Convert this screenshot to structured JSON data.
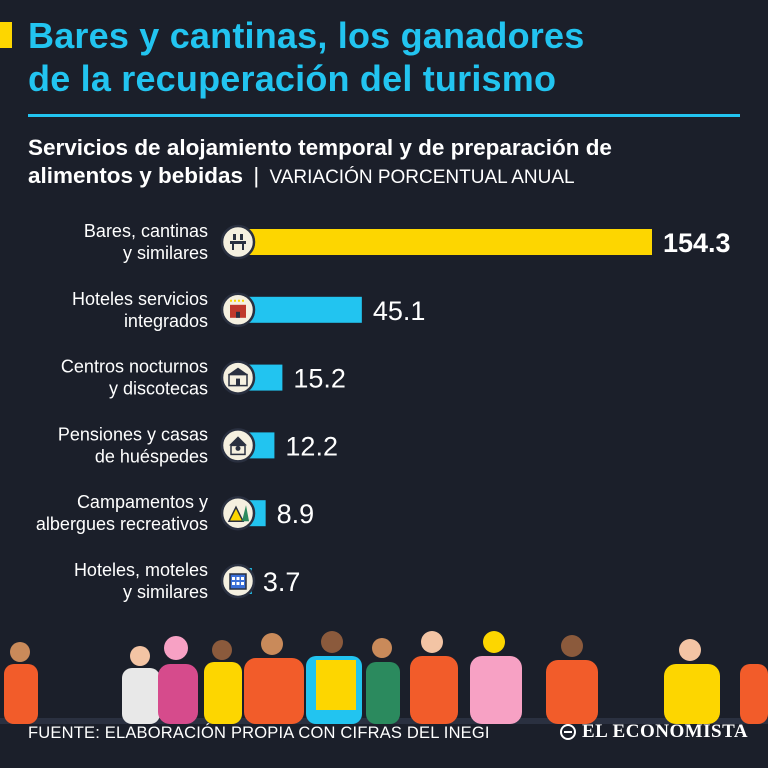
{
  "header": {
    "title_line1": "Bares y cantinas, los ganadores",
    "title_line2": "de la recuperación del turismo"
  },
  "subtitle": {
    "main_line1": "Servicios de alojamiento temporal y de preparación de",
    "main_line2": "alimentos y bebidas",
    "separator": "|",
    "unit": "VARIACIÓN PORCENTUAL ANUAL"
  },
  "chart_data": {
    "type": "bar",
    "orientation": "horizontal",
    "title": "Servicios de alojamiento temporal y de preparación de alimentos y bebidas",
    "ylabel": "",
    "xlabel": "VARIACIÓN PORCENTUAL ANUAL",
    "categories": [
      [
        "Bares, cantinas",
        "y similares"
      ],
      [
        "Hoteles servicios",
        "integrados"
      ],
      [
        "Centros nocturnos",
        "y discotecas"
      ],
      [
        "Pensiones y casas",
        "de huéspedes"
      ],
      [
        "Campamentos y",
        "albergues recreativos"
      ],
      [
        "Hoteles, moteles",
        "y similares"
      ]
    ],
    "values": [
      154.3,
      45.1,
      15.2,
      12.2,
      8.9,
      3.7
    ],
    "value_labels": [
      "154.3",
      "45.1",
      "15.2",
      "12.2",
      "8.9",
      "3.7"
    ],
    "icons": [
      "bar-icon",
      "hotel-icon",
      "nightclub-icon",
      "guesthouse-icon",
      "camping-icon",
      "motel-icon"
    ],
    "highlight_index": 0,
    "xlim": [
      0,
      154.3
    ],
    "colors": {
      "highlight": "#fdd600",
      "default": "#22c4f0"
    }
  },
  "footer": {
    "source": "FUENTE: ELABORACIÓN PROPIA CON CIFRAS DEL INEGI",
    "brand": "EL ECONOMISTA"
  },
  "colors": {
    "background": "#1b1f2a",
    "accent_yellow": "#fdd600",
    "accent_blue": "#22c4f0",
    "text": "#ffffff"
  }
}
